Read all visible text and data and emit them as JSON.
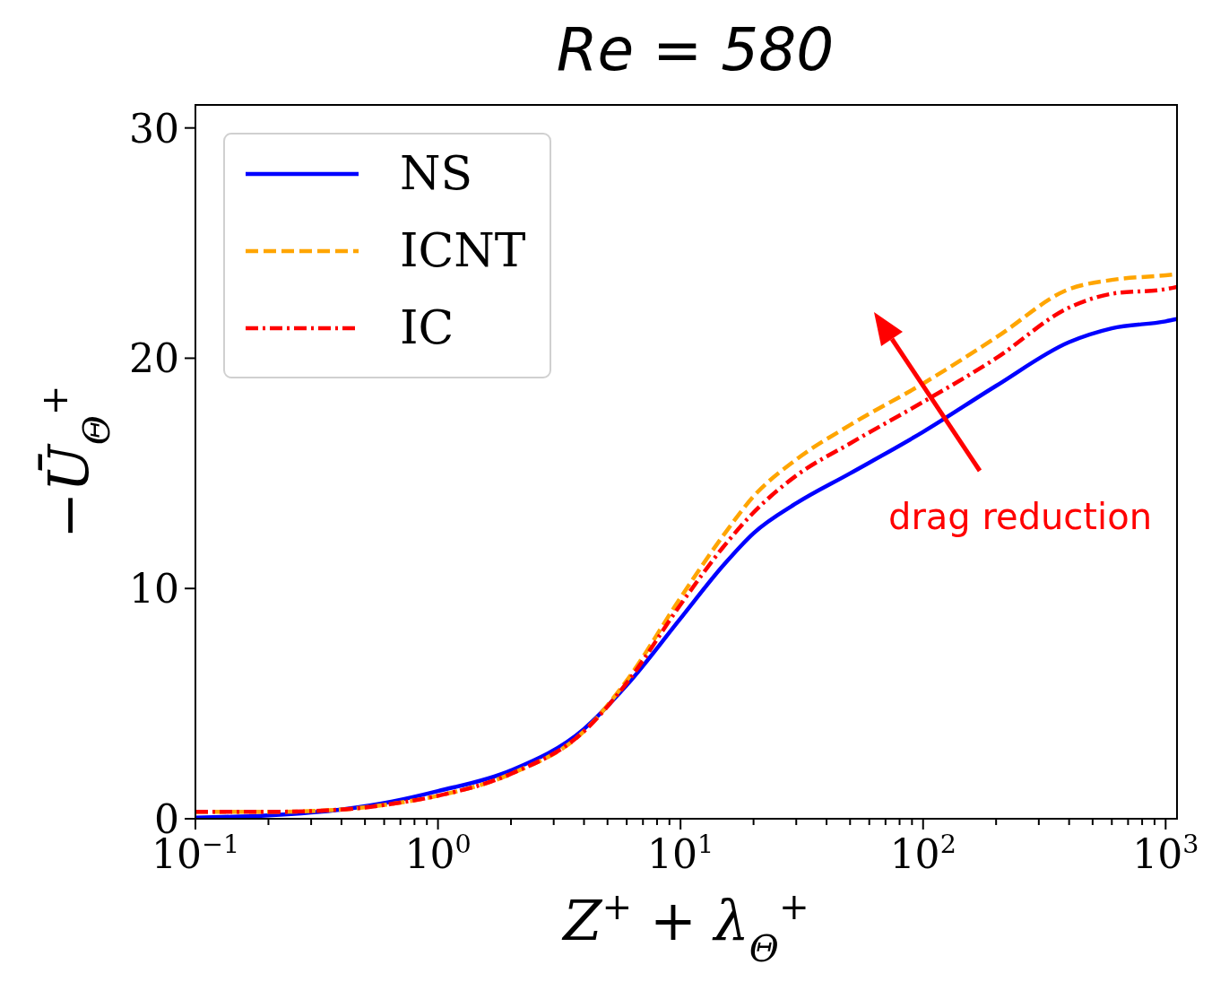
{
  "chart_data": {
    "type": "line",
    "title": "Re = 580",
    "xlabel": "Z$^{+}$ + λ$_{Θ}$$^{+}$",
    "ylabel": "−Ū$_{Θ}$$^{+}$",
    "log": "x",
    "xlim": [
      0.1,
      1114
    ],
    "ylim": [
      0,
      31
    ],
    "xticks": [
      {
        "value": 0.1,
        "label": "10$^{−1}$"
      },
      {
        "value": 0.2,
        "label": null
      },
      {
        "value": 0.3,
        "label": null
      },
      {
        "value": 0.4,
        "label": null
      },
      {
        "value": 0.5,
        "label": null
      },
      {
        "value": 0.6,
        "label": null
      },
      {
        "value": 0.7,
        "label": null
      },
      {
        "value": 0.8,
        "label": null
      },
      {
        "value": 0.9,
        "label": null
      },
      {
        "value": 1,
        "label": "10$^{0}$"
      },
      {
        "value": 2,
        "label": null
      },
      {
        "value": 3,
        "label": null
      },
      {
        "value": 4,
        "label": null
      },
      {
        "value": 5,
        "label": null
      },
      {
        "value": 6,
        "label": null
      },
      {
        "value": 7,
        "label": null
      },
      {
        "value": 8,
        "label": null
      },
      {
        "value": 9,
        "label": null
      },
      {
        "value": 10,
        "label": "10$^{1}$"
      },
      {
        "value": 20,
        "label": null
      },
      {
        "value": 30,
        "label": null
      },
      {
        "value": 40,
        "label": null
      },
      {
        "value": 50,
        "label": null
      },
      {
        "value": 60,
        "label": null
      },
      {
        "value": 70,
        "label": null
      },
      {
        "value": 80,
        "label": null
      },
      {
        "value": 90,
        "label": null
      },
      {
        "value": 100,
        "label": "10$^{2}$"
      },
      {
        "value": 200,
        "label": null
      },
      {
        "value": 300,
        "label": null
      },
      {
        "value": 400,
        "label": null
      },
      {
        "value": 500,
        "label": null
      },
      {
        "value": 600,
        "label": null
      },
      {
        "value": 700,
        "label": null
      },
      {
        "value": 800,
        "label": null
      },
      {
        "value": 900,
        "label": null
      },
      {
        "value": 1000,
        "label": "10$^{3}$"
      }
    ],
    "yticks": [
      0,
      10,
      20,
      30
    ],
    "x": [
      0.1,
      0.2,
      0.4,
      0.65,
      1,
      2,
      4,
      6,
      10,
      15,
      20,
      30,
      50,
      100,
      200,
      400,
      600,
      1000,
      1114
    ],
    "series": [
      {
        "name": "NS",
        "color": "#0000ff",
        "line_style": "solid",
        "values": [
          0.05,
          0.15,
          0.4,
          0.75,
          1.2,
          2.1,
          3.9,
          5.8,
          8.7,
          11.0,
          12.4,
          13.7,
          15.0,
          16.8,
          18.8,
          20.7,
          21.3,
          21.6,
          21.7
        ]
      },
      {
        "name": "ICNT",
        "color": "#ffa500",
        "line_style": "dashed",
        "values": [
          0.3,
          0.3,
          0.4,
          0.65,
          1.0,
          1.95,
          3.8,
          6.0,
          9.6,
          12.3,
          14.0,
          15.6,
          17.1,
          18.9,
          20.9,
          23.0,
          23.4,
          23.6,
          23.65
        ]
      },
      {
        "name": "IC",
        "color": "#ff0000",
        "line_style": "dashdot",
        "values": [
          0.3,
          0.3,
          0.4,
          0.65,
          1.0,
          1.95,
          3.8,
          5.9,
          9.3,
          11.8,
          13.3,
          14.9,
          16.3,
          18.1,
          20.0,
          22.2,
          22.8,
          23.0,
          23.1
        ]
      }
    ],
    "legend": "top left",
    "grid": false,
    "annotations": [
      "drag reduction"
    ]
  }
}
